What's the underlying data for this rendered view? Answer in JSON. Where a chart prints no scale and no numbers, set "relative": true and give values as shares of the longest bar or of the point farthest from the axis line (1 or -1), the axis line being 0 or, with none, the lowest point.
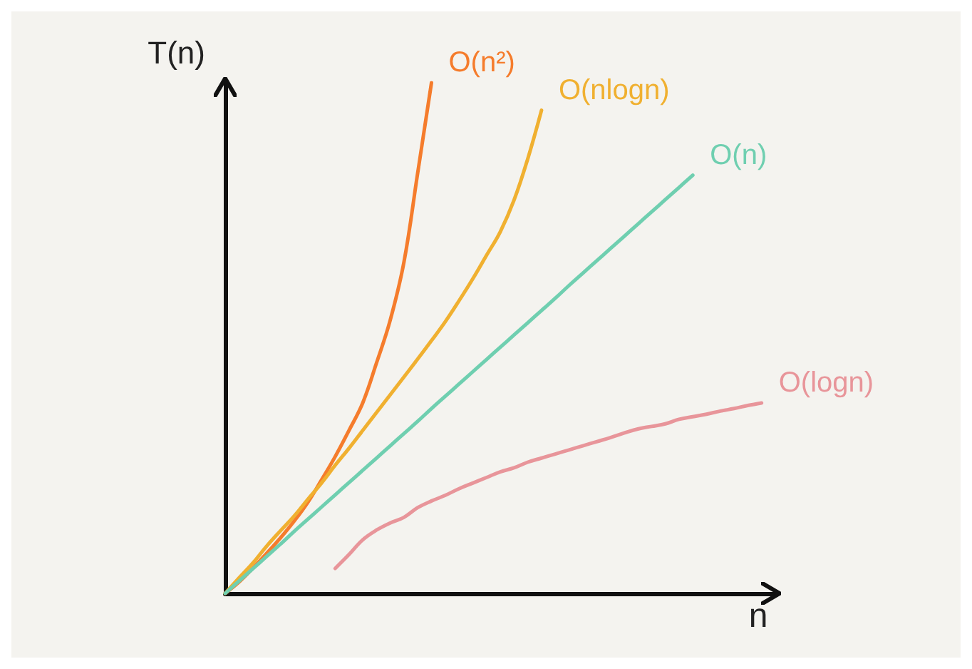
{
  "chart_data": {
    "type": "line",
    "relative": true,
    "xlabel": "n",
    "ylabel": "T(n)",
    "grid": false,
    "legend": false,
    "marker": "none",
    "line_style": "solid",
    "categories": [
      null,
      null,
      null,
      null,
      null,
      null,
      null,
      null,
      null,
      null,
      null,
      null,
      null,
      null,
      null,
      null,
      null,
      null,
      null,
      null,
      null,
      null,
      null,
      null,
      null,
      null,
      null,
      null,
      null,
      null,
      null,
      null,
      null,
      null,
      null,
      null,
      null,
      null,
      null,
      null,
      null
    ],
    "series": [
      {
        "name": "O(n²)",
        "color": "#f57c2c",
        "values": [
          0,
          0.022,
          0.049,
          0.078,
          0.108,
          0.141,
          0.178,
          0.222,
          0.268,
          0.319,
          0.373,
          0.451,
          0.535,
          0.649,
          0.824,
          1.0,
          null,
          null,
          null,
          null,
          null,
          null,
          null,
          null,
          null,
          null,
          null,
          null,
          null,
          null,
          null,
          null,
          null,
          null,
          null,
          null,
          null,
          null,
          null,
          null,
          null
        ]
      },
      {
        "name": "O(nlogn)",
        "color": "#f0b030",
        "values": [
          0,
          0.03,
          0.059,
          0.092,
          0.122,
          0.151,
          0.184,
          0.216,
          0.251,
          0.284,
          0.319,
          0.354,
          0.389,
          0.424,
          0.459,
          0.495,
          0.532,
          0.573,
          0.616,
          0.662,
          0.708,
          0.77,
          0.851,
          0.946,
          null,
          null,
          null,
          null,
          null,
          null,
          null,
          null,
          null,
          null,
          null,
          null,
          null,
          null,
          null,
          null,
          null
        ]
      },
      {
        "name": "O(n)",
        "color": "#6fcfb0",
        "values": [
          0,
          0.024,
          0.048,
          0.072,
          0.096,
          0.121,
          0.145,
          0.169,
          0.193,
          0.217,
          0.241,
          0.265,
          0.289,
          0.313,
          0.337,
          0.362,
          0.386,
          0.41,
          0.434,
          0.458,
          0.482,
          0.506,
          0.53,
          0.554,
          0.578,
          0.603,
          0.627,
          0.651,
          0.675,
          0.699,
          0.723,
          0.747,
          0.771,
          0.795,
          0.819,
          null,
          null,
          null,
          null,
          null,
          null
        ]
      },
      {
        "name": "O(logn)",
        "color": "#e8959a",
        "values": [
          null,
          null,
          null,
          null,
          null,
          null,
          null,
          null,
          0.049,
          0.076,
          0.105,
          0.124,
          0.138,
          0.149,
          0.168,
          0.181,
          0.192,
          0.205,
          0.216,
          0.227,
          0.238,
          0.246,
          0.257,
          0.265,
          0.273,
          0.281,
          0.289,
          0.297,
          0.305,
          0.314,
          0.322,
          0.327,
          0.332,
          0.341,
          0.346,
          0.351,
          0.357,
          0.362,
          0.368,
          0.373,
          null
        ]
      }
    ]
  }
}
